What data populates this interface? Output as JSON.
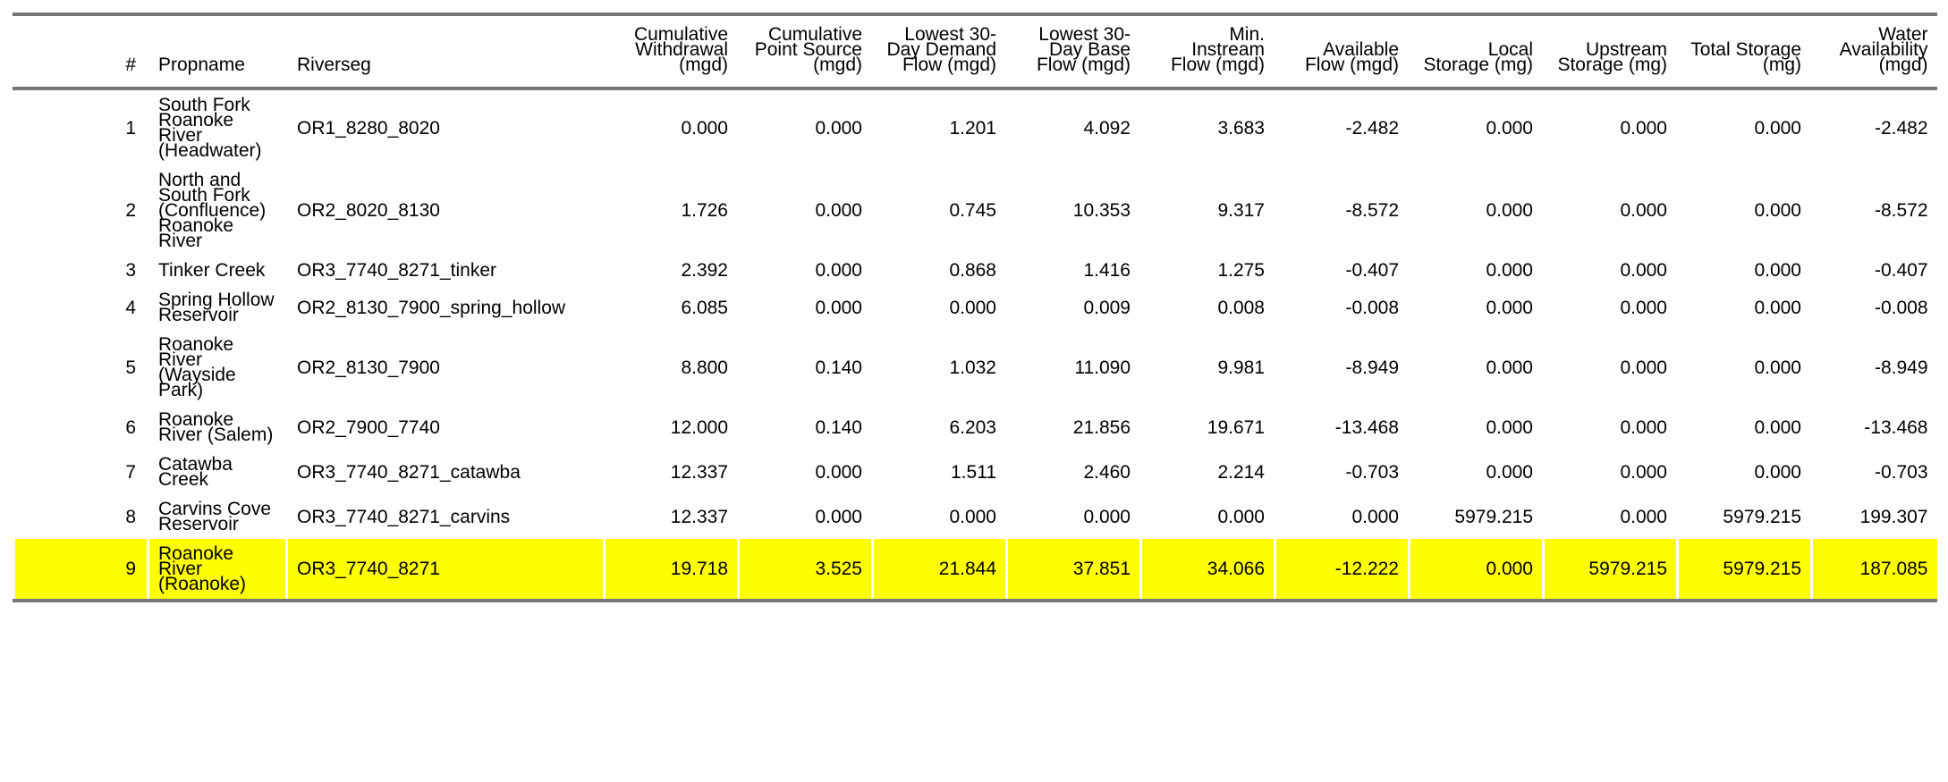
{
  "columns": [
    {
      "key": "num",
      "label": "#",
      "align": "idx"
    },
    {
      "key": "propname",
      "label": "Propname",
      "align": "txt"
    },
    {
      "key": "riverseg",
      "label": "Riverseg",
      "align": "txt"
    },
    {
      "key": "cum_withdrawal",
      "label": "Cumulative Withdrawal (mgd)",
      "align": "num"
    },
    {
      "key": "cum_point_source",
      "label": "Cumulative Point Source (mgd)",
      "align": "num"
    },
    {
      "key": "lowest_30day_demand",
      "label": "Lowest 30-Day Demand Flow (mgd)",
      "align": "num"
    },
    {
      "key": "lowest_30day_base",
      "label": "Lowest 30-Day Base Flow (mgd)",
      "align": "num"
    },
    {
      "key": "min_instream",
      "label": "Min. Instream Flow (mgd)",
      "align": "num"
    },
    {
      "key": "available_flow",
      "label": "Available Flow (mgd)",
      "align": "num"
    },
    {
      "key": "local_storage",
      "label": "Local Storage (mg)",
      "align": "num"
    },
    {
      "key": "upstream_storage",
      "label": "Upstream Storage (mg)",
      "align": "num"
    },
    {
      "key": "total_storage",
      "label": "Total Storage (mg)",
      "align": "num"
    },
    {
      "key": "water_availability",
      "label": "Water Availability (mgd)",
      "align": "num"
    }
  ],
  "rows": [
    {
      "num": "1",
      "propname": "South Fork Roanoke River (Headwater)",
      "riverseg": "OR1_8280_8020",
      "cum_withdrawal": "0.000",
      "cum_point_source": "0.000",
      "lowest_30day_demand": "1.201",
      "lowest_30day_base": "4.092",
      "min_instream": "3.683",
      "available_flow": "-2.482",
      "local_storage": "0.000",
      "upstream_storage": "0.000",
      "total_storage": "0.000",
      "water_availability": "-2.482"
    },
    {
      "num": "2",
      "propname": "North and South Fork (Confluence) Roanoke River",
      "riverseg": "OR2_8020_8130",
      "cum_withdrawal": "1.726",
      "cum_point_source": "0.000",
      "lowest_30day_demand": "0.745",
      "lowest_30day_base": "10.353",
      "min_instream": "9.317",
      "available_flow": "-8.572",
      "local_storage": "0.000",
      "upstream_storage": "0.000",
      "total_storage": "0.000",
      "water_availability": "-8.572"
    },
    {
      "num": "3",
      "propname": "Tinker Creek",
      "riverseg": "OR3_7740_8271_tinker",
      "cum_withdrawal": "2.392",
      "cum_point_source": "0.000",
      "lowest_30day_demand": "0.868",
      "lowest_30day_base": "1.416",
      "min_instream": "1.275",
      "available_flow": "-0.407",
      "local_storage": "0.000",
      "upstream_storage": "0.000",
      "total_storage": "0.000",
      "water_availability": "-0.407"
    },
    {
      "num": "4",
      "propname": "Spring Hollow Reservoir",
      "riverseg": "OR2_8130_7900_spring_hollow",
      "cum_withdrawal": "6.085",
      "cum_point_source": "0.000",
      "lowest_30day_demand": "0.000",
      "lowest_30day_base": "0.009",
      "min_instream": "0.008",
      "available_flow": "-0.008",
      "local_storage": "0.000",
      "upstream_storage": "0.000",
      "total_storage": "0.000",
      "water_availability": "-0.008"
    },
    {
      "num": "5",
      "propname": "Roanoke River (Wayside Park)",
      "riverseg": "OR2_8130_7900",
      "cum_withdrawal": "8.800",
      "cum_point_source": "0.140",
      "lowest_30day_demand": "1.032",
      "lowest_30day_base": "11.090",
      "min_instream": "9.981",
      "available_flow": "-8.949",
      "local_storage": "0.000",
      "upstream_storage": "0.000",
      "total_storage": "0.000",
      "water_availability": "-8.949"
    },
    {
      "num": "6",
      "propname": "Roanoke River (Salem)",
      "riverseg": "OR2_7900_7740",
      "cum_withdrawal": "12.000",
      "cum_point_source": "0.140",
      "lowest_30day_demand": "6.203",
      "lowest_30day_base": "21.856",
      "min_instream": "19.671",
      "available_flow": "-13.468",
      "local_storage": "0.000",
      "upstream_storage": "0.000",
      "total_storage": "0.000",
      "water_availability": "-13.468"
    },
    {
      "num": "7",
      "propname": "Catawba Creek",
      "riverseg": "OR3_7740_8271_catawba",
      "cum_withdrawal": "12.337",
      "cum_point_source": "0.000",
      "lowest_30day_demand": "1.511",
      "lowest_30day_base": "2.460",
      "min_instream": "2.214",
      "available_flow": "-0.703",
      "local_storage": "0.000",
      "upstream_storage": "0.000",
      "total_storage": "0.000",
      "water_availability": "-0.703"
    },
    {
      "num": "8",
      "propname": "Carvins Cove Reservoir",
      "riverseg": "OR3_7740_8271_carvins",
      "cum_withdrawal": "12.337",
      "cum_point_source": "0.000",
      "lowest_30day_demand": "0.000",
      "lowest_30day_base": "0.000",
      "min_instream": "0.000",
      "available_flow": "0.000",
      "local_storage": "5979.215",
      "upstream_storage": "0.000",
      "total_storage": "5979.215",
      "water_availability": "199.307"
    },
    {
      "num": "9",
      "propname": "Roanoke River (Roanoke)",
      "riverseg": "OR3_7740_8271",
      "cum_withdrawal": "19.718",
      "cum_point_source": "3.525",
      "lowest_30day_demand": "21.844",
      "lowest_30day_base": "37.851",
      "min_instream": "34.066",
      "available_flow": "-12.222",
      "local_storage": "0.000",
      "upstream_storage": "5979.215",
      "total_storage": "5979.215",
      "water_availability": "187.085",
      "highlight": true
    }
  ],
  "colors": {
    "highlight": "#ffff00",
    "rule": "#777777"
  }
}
